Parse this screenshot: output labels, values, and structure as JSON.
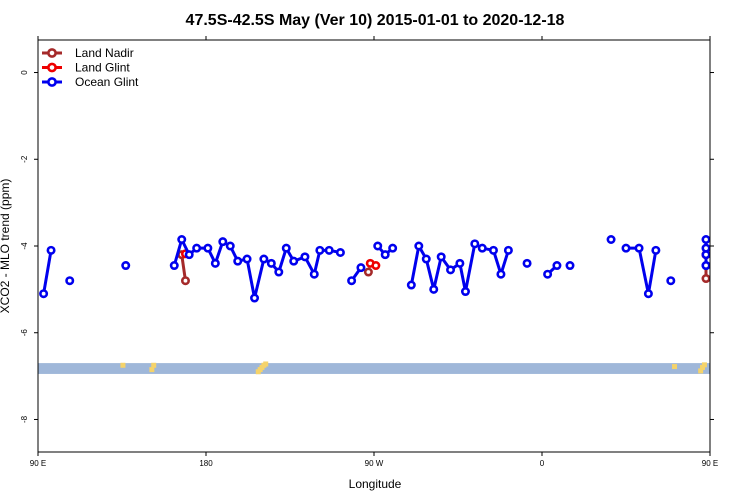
{
  "chart_data": {
    "type": "line",
    "title": "47.5S-42.5S May (Ver 10)   2015-01-01 to 2020-12-18",
    "xlabel": "Longitude",
    "ylabel": "XCO2 - MLO trend (ppm)",
    "xlim": [
      90,
      450
    ],
    "ylim": [
      -8.75,
      0.75
    ],
    "x_ticks": [
      {
        "value": 90,
        "label": "90 E"
      },
      {
        "value": 180,
        "label": "180"
      },
      {
        "value": 270,
        "label": "90 W"
      },
      {
        "value": 360,
        "label": "0"
      },
      {
        "value": 450,
        "label": "90 E"
      }
    ],
    "x_ticks_top": [
      90,
      180,
      270,
      360,
      450
    ],
    "y_ticks": [
      {
        "value": 0,
        "label": "0"
      },
      {
        "value": -2,
        "label": "-2"
      },
      {
        "value": -4,
        "label": "-4"
      },
      {
        "value": -6,
        "label": "-6"
      },
      {
        "value": -8,
        "label": "-8"
      }
    ],
    "grid": false,
    "legend_position": "top-left",
    "series": [
      {
        "name": "Land Nadir",
        "color": "#a52a2a",
        "segments": [
          [
            [
              167,
              -4.2
            ],
            [
              169,
              -4.8
            ]
          ],
          [
            [
              267,
              -4.6
            ]
          ],
          [
            [
              450,
              -4.2
            ],
            [
              448,
              -4.75
            ]
          ]
        ]
      },
      {
        "name": "Land Glint",
        "color": "#ee0000",
        "segments": [
          [
            [
              169,
              -4.18
            ]
          ],
          [
            [
              268,
              -4.4
            ],
            [
              271,
              -4.45
            ]
          ],
          [
            [
              451,
              -4.2
            ]
          ]
        ]
      },
      {
        "name": "Ocean Glint",
        "color": "#0000ee",
        "segments": [
          [
            [
              93,
              -5.1
            ],
            [
              97,
              -4.1
            ]
          ],
          [
            [
              107,
              -4.8
            ]
          ],
          [
            [
              137,
              -4.45
            ]
          ],
          [
            [
              163,
              -4.45
            ],
            [
              167,
              -3.85
            ],
            [
              171,
              -4.2
            ],
            [
              175,
              -4.05
            ],
            [
              181,
              -4.05
            ],
            [
              185,
              -4.4
            ],
            [
              189,
              -3.9
            ],
            [
              193,
              -4.0
            ],
            [
              197,
              -4.35
            ],
            [
              202,
              -4.3
            ],
            [
              206,
              -5.2
            ],
            [
              211,
              -4.3
            ],
            [
              215,
              -4.4
            ],
            [
              219,
              -4.6
            ],
            [
              223,
              -4.05
            ],
            [
              227,
              -4.35
            ],
            [
              233,
              -4.25
            ],
            [
              238,
              -4.65
            ],
            [
              241,
              -4.1
            ],
            [
              246,
              -4.1
            ],
            [
              252,
              -4.15
            ]
          ],
          [
            [
              258,
              -4.8
            ],
            [
              263,
              -4.5
            ]
          ],
          [
            [
              272,
              -4.0
            ],
            [
              276,
              -4.2
            ],
            [
              280,
              -4.05
            ]
          ],
          [
            [
              290,
              -4.9
            ],
            [
              294,
              -4.0
            ],
            [
              298,
              -4.3
            ],
            [
              302,
              -5.0
            ],
            [
              306,
              -4.25
            ],
            [
              311,
              -4.55
            ],
            [
              316,
              -4.4
            ],
            [
              319,
              -5.05
            ],
            [
              324,
              -3.95
            ],
            [
              328,
              -4.05
            ],
            [
              334,
              -4.1
            ],
            [
              338,
              -4.65
            ],
            [
              342,
              -4.1
            ]
          ],
          [
            [
              352,
              -4.4
            ]
          ],
          [
            [
              363,
              -4.65
            ],
            [
              368,
              -4.45
            ]
          ],
          [
            [
              375,
              -4.45
            ]
          ],
          [
            [
              397,
              -3.85
            ]
          ],
          [
            [
              405,
              -4.05
            ],
            [
              412,
              -4.05
            ],
            [
              417,
              -5.1
            ],
            [
              421,
              -4.1
            ]
          ],
          [
            [
              429,
              -4.8
            ]
          ],
          [
            [
              465,
              -4.45
            ]
          ],
          [
            [
              479,
              -4.45
            ],
            [
              485,
              -3.85
            ],
            [
              489,
              -4.2
            ],
            [
              495,
              -4.05
            ]
          ]
        ]
      }
    ],
    "band": {
      "y_top": -6.7,
      "y_bottom": -6.95,
      "color": "#9fb7d9"
    },
    "band_marks_color": "#f5d36a",
    "band_marks": [
      [
        135.5,
        -6.75
      ],
      [
        151,
        -6.85
      ],
      [
        152,
        -6.75
      ],
      [
        208,
        -6.9
      ],
      [
        209,
        -6.85
      ],
      [
        210,
        -6.8
      ],
      [
        211,
        -6.75
      ],
      [
        212,
        -6.72
      ],
      [
        431,
        -6.78
      ],
      [
        445,
        -6.88
      ],
      [
        446,
        -6.8
      ],
      [
        447,
        -6.74
      ]
    ]
  }
}
